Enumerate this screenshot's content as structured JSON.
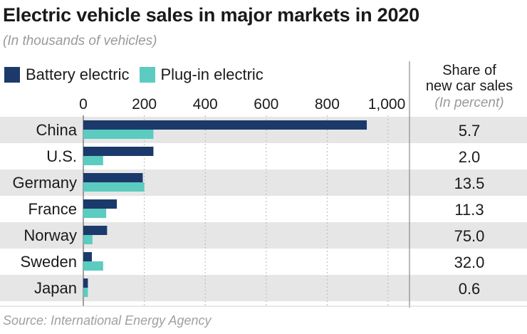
{
  "title": "Electric vehicle sales in major markets in 2020",
  "subtitle": "(In thousands of vehicles)",
  "legend": {
    "battery": "Battery electric",
    "plugin": "Plug-in electric"
  },
  "share_header": {
    "line1": "Share of",
    "line2": "new car sales",
    "unit": "(In percent)"
  },
  "source": "Source: International Energy Agency",
  "colors": {
    "battery": "#1b3a6b",
    "plugin": "#5ccbc0",
    "band": "#e6e6e6",
    "grid": "#b8b8b8",
    "divider": "#8a8a8a"
  },
  "chart_data": {
    "type": "bar",
    "orientation": "horizontal",
    "title": "Electric vehicle sales in major markets in 2020",
    "xlabel": "(In thousands of vehicles)",
    "categories": [
      "China",
      "U.S.",
      "Germany",
      "France",
      "Norway",
      "Sweden",
      "Japan"
    ],
    "series": [
      {
        "name": "Battery electric",
        "values": [
          930,
          230,
          195,
          110,
          78,
          28,
          15
        ]
      },
      {
        "name": "Plug-in electric",
        "values": [
          230,
          65,
          200,
          75,
          30,
          65,
          15
        ]
      }
    ],
    "xticks": [
      0,
      200,
      400,
      600,
      800,
      1000
    ],
    "xtick_labels": [
      "0",
      "200",
      "400",
      "600",
      "800",
      "1,000"
    ],
    "xlim": [
      0,
      1000
    ],
    "share_of_new_car_sales": [
      "5.7",
      "2.0",
      "13.5",
      "11.3",
      "75.0",
      "32.0",
      "0.6"
    ]
  }
}
